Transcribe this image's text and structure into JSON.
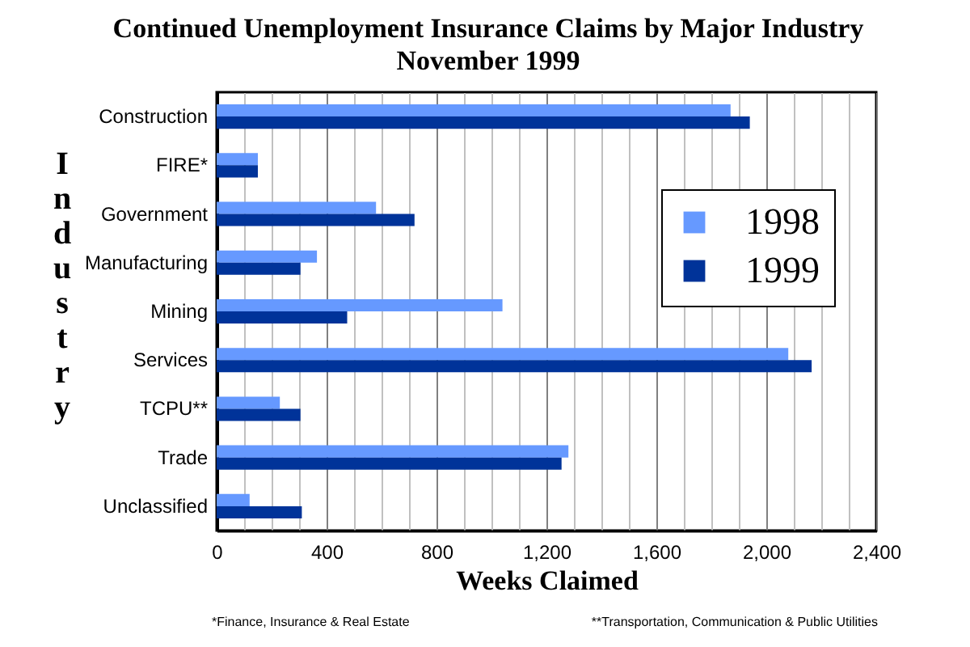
{
  "chart_data": {
    "type": "bar",
    "orientation": "horizontal",
    "title": "Continued Unemployment Insurance Claims by Major Industry",
    "subtitle": "November 1999",
    "xlabel": "Weeks Claimed",
    "ylabel": "Industry",
    "categories": [
      "Construction",
      "FIRE*",
      "Government",
      "Manufacturing",
      "Mining",
      "Services",
      "TCPU**",
      "Trade",
      "Unclassified"
    ],
    "series": [
      {
        "name": "1998",
        "color": "#6699ff",
        "values": [
          1870,
          150,
          580,
          365,
          1040,
          2080,
          230,
          1280,
          120
        ]
      },
      {
        "name": "1999",
        "color": "#003399",
        "values": [
          1940,
          150,
          720,
          305,
          475,
          2165,
          305,
          1255,
          310
        ]
      }
    ],
    "xlim": [
      0,
      2400
    ],
    "xticks": [
      0,
      {
        "value": 100,
        "label": null
      },
      {
        "value": 200,
        "label": null
      },
      {
        "value": 300,
        "label": null
      },
      400,
      {
        "value": 500,
        "label": null
      },
      {
        "value": 600,
        "label": null
      },
      {
        "value": 700,
        "label": null
      },
      800,
      {
        "value": 900,
        "label": null
      },
      {
        "value": 1000,
        "label": null
      },
      {
        "value": 1100,
        "label": null
      },
      {
        "value": 1200,
        "label": "1,200"
      },
      {
        "value": 1300,
        "label": null
      },
      {
        "value": 1400,
        "label": null
      },
      {
        "value": 1500,
        "label": null
      },
      {
        "value": 1600,
        "label": "1,600"
      },
      {
        "value": 1700,
        "label": null
      },
      {
        "value": 1800,
        "label": null
      },
      {
        "value": 1900,
        "label": null
      },
      {
        "value": 2000,
        "label": "2,000"
      },
      {
        "value": 2100,
        "label": null
      },
      {
        "value": 2200,
        "label": null
      },
      {
        "value": 2300,
        "label": null
      },
      {
        "value": 2400,
        "label": "2,400"
      }
    ],
    "grid": "x",
    "legend": "right",
    "annotations": [
      "*Finance, Insurance & Real Estate",
      "**Transportation, Communication & Public Utilities"
    ]
  }
}
